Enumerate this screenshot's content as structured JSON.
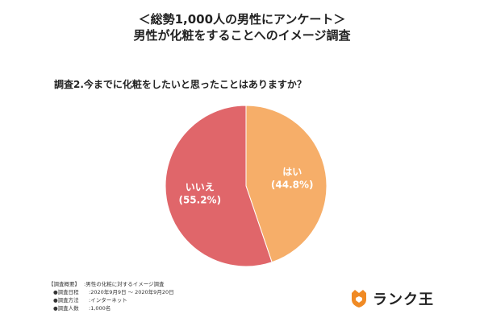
{
  "header": {
    "title_line1": "＜総勢1,000人の男性にアンケート＞",
    "title_line2": "男性が化粧をすることへのイメージ調査"
  },
  "question": "調査2.今までに化粧をしたいと思ったことはありますか？",
  "chart_data": {
    "type": "pie",
    "slices": [
      {
        "label": "はい",
        "percent_text": "(44.8%)",
        "value": 44.8,
        "color": "#F6AE69"
      },
      {
        "label": "いいえ",
        "percent_text": "(55.2%)",
        "value": 55.2,
        "color": "#E0666A"
      }
    ],
    "start": "12 o'clock",
    "direction": "clockwise"
  },
  "survey": {
    "heading": "【調査概要】",
    "heading_value": ":男性の化粧に対するイメージ調査",
    "rows": [
      {
        "label": "●調査日程",
        "value": ":2020年9月9日 〜 2020年9月20日"
      },
      {
        "label": "●調査方法",
        "value": ":インターネット"
      },
      {
        "label": "●調査人数",
        "value": ":1,000名"
      }
    ]
  },
  "logo": {
    "text": "ランク王",
    "icon": "crown-shield-icon",
    "icon_color": "#F08A24"
  }
}
